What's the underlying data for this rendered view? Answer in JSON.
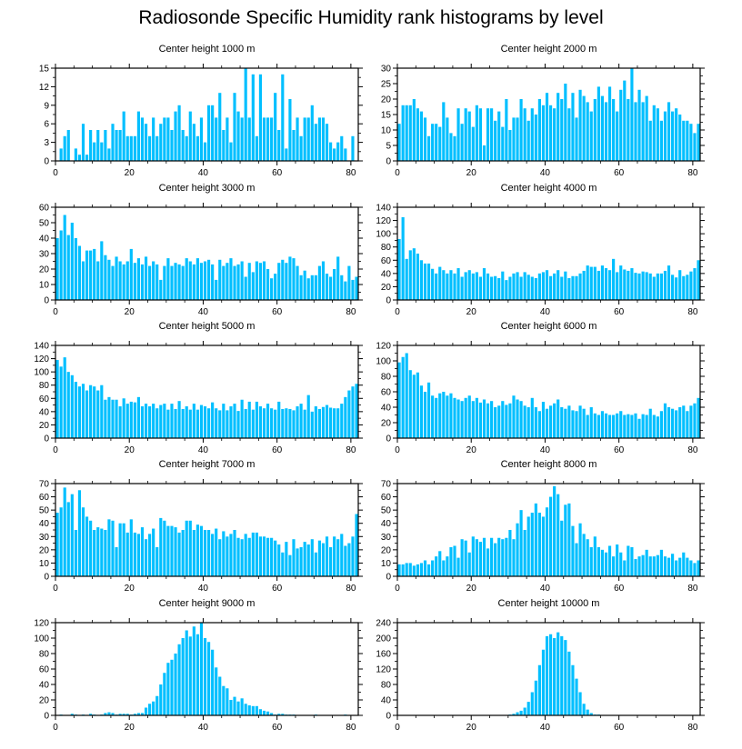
{
  "title": "Radiosonde Specific Humidity rank histograms by level",
  "bar_color": "#00bfff",
  "chart_data": [
    {
      "type": "bar",
      "title": "Center height 1000 m",
      "xlim": [
        0,
        82
      ],
      "ylim": [
        0,
        15
      ],
      "xticks": [
        0,
        20,
        40,
        60,
        80
      ],
      "yticks": [
        0,
        3,
        6,
        9,
        12,
        15
      ],
      "values": [
        0,
        2,
        4,
        5,
        0,
        2,
        1,
        6,
        1,
        5,
        3,
        5,
        3,
        5,
        2,
        6,
        5,
        5,
        8,
        4,
        4,
        4,
        8,
        7,
        6,
        4,
        7,
        4,
        6,
        7,
        7,
        5,
        8,
        9,
        5,
        4,
        8,
        6,
        4,
        7,
        3,
        9,
        9,
        7,
        11,
        5,
        7,
        3,
        11,
        8,
        7,
        15,
        7,
        14,
        4,
        14,
        7,
        7,
        7,
        11,
        5,
        14,
        2,
        10,
        5,
        7,
        4,
        7,
        7,
        9,
        6,
        7,
        7,
        6,
        3,
        2,
        3,
        4,
        2,
        0,
        4,
        0
      ]
    },
    {
      "type": "bar",
      "title": "Center height 2000 m",
      "xlim": [
        0,
        82
      ],
      "ylim": [
        0,
        30
      ],
      "xticks": [
        0,
        20,
        40,
        60,
        80
      ],
      "yticks": [
        0,
        5,
        10,
        15,
        20,
        25,
        30
      ],
      "values": [
        12,
        18,
        18,
        18,
        20,
        17,
        16,
        14,
        8,
        12,
        12,
        11,
        19,
        14,
        9,
        8,
        17,
        12,
        17,
        16,
        11,
        18,
        17,
        5,
        17,
        17,
        13,
        16,
        11,
        20,
        10,
        14,
        14,
        20,
        17,
        13,
        17,
        15,
        20,
        18,
        22,
        18,
        17,
        22,
        20,
        25,
        17,
        22,
        14,
        23,
        21,
        19,
        16,
        20,
        24,
        21,
        19,
        24,
        20,
        16,
        23,
        26,
        20,
        30,
        19,
        23,
        19,
        21,
        13,
        18,
        17,
        13,
        16,
        19,
        16,
        17,
        15,
        13,
        13,
        12,
        9,
        12
      ]
    },
    {
      "type": "bar",
      "title": "Center height 3000 m",
      "xlim": [
        0,
        82
      ],
      "ylim": [
        0,
        60
      ],
      "xticks": [
        0,
        20,
        40,
        60,
        80
      ],
      "yticks": [
        0,
        10,
        20,
        30,
        40,
        50,
        60
      ],
      "values": [
        40,
        45,
        55,
        42,
        50,
        40,
        35,
        25,
        32,
        32,
        33,
        25,
        38,
        29,
        26,
        22,
        28,
        25,
        23,
        25,
        33,
        24,
        27,
        23,
        28,
        22,
        25,
        23,
        13,
        22,
        27,
        22,
        24,
        23,
        22,
        27,
        25,
        23,
        27,
        24,
        25,
        26,
        23,
        13,
        26,
        22,
        24,
        27,
        22,
        23,
        25,
        15,
        24,
        18,
        25,
        24,
        25,
        20,
        14,
        17,
        24,
        26,
        24,
        28,
        27,
        22,
        16,
        19,
        14,
        16,
        16,
        22,
        25,
        17,
        15,
        20,
        28,
        16,
        12,
        22,
        13,
        15
      ]
    },
    {
      "type": "bar",
      "title": "Center height 4000 m",
      "xlim": [
        0,
        82
      ],
      "ylim": [
        0,
        140
      ],
      "xticks": [
        0,
        20,
        40,
        60,
        80
      ],
      "yticks": [
        0,
        20,
        40,
        60,
        80,
        100,
        120,
        140
      ],
      "values": [
        92,
        125,
        62,
        75,
        78,
        70,
        60,
        55,
        55,
        47,
        40,
        50,
        45,
        40,
        45,
        40,
        48,
        35,
        42,
        45,
        40,
        42,
        35,
        48,
        40,
        35,
        36,
        33,
        43,
        30,
        35,
        40,
        42,
        35,
        42,
        38,
        35,
        33,
        40,
        42,
        45,
        36,
        40,
        45,
        35,
        43,
        33,
        36,
        36,
        40,
        44,
        52,
        50,
        50,
        44,
        52,
        48,
        45,
        62,
        42,
        52,
        46,
        44,
        48,
        41,
        40,
        43,
        42,
        40,
        35,
        40,
        40,
        44,
        52,
        38,
        34,
        45,
        36,
        38,
        43,
        48,
        60
      ]
    },
    {
      "type": "bar",
      "title": "Center height 5000 m",
      "xlim": [
        0,
        82
      ],
      "ylim": [
        0,
        140
      ],
      "xticks": [
        0,
        20,
        40,
        60,
        80
      ],
      "yticks": [
        0,
        20,
        40,
        60,
        80,
        100,
        120,
        140
      ],
      "values": [
        118,
        108,
        122,
        100,
        95,
        85,
        78,
        82,
        72,
        80,
        78,
        72,
        80,
        58,
        62,
        58,
        58,
        48,
        60,
        52,
        55,
        54,
        62,
        48,
        52,
        48,
        52,
        45,
        50,
        52,
        43,
        52,
        44,
        56,
        44,
        48,
        43,
        52,
        43,
        50,
        48,
        45,
        54,
        45,
        42,
        52,
        42,
        48,
        52,
        41,
        58,
        44,
        55,
        43,
        55,
        48,
        45,
        52,
        45,
        43,
        55,
        44,
        45,
        44,
        42,
        48,
        52,
        43,
        65,
        40,
        48,
        44,
        47,
        50,
        46,
        45,
        45,
        52,
        62,
        72,
        78,
        82
      ]
    },
    {
      "type": "bar",
      "title": "Center height 6000 m",
      "xlim": [
        0,
        82
      ],
      "ylim": [
        0,
        120
      ],
      "xticks": [
        0,
        20,
        40,
        60,
        80
      ],
      "yticks": [
        0,
        20,
        40,
        60,
        80,
        100,
        120
      ],
      "values": [
        98,
        105,
        110,
        88,
        82,
        85,
        68,
        60,
        72,
        55,
        52,
        58,
        60,
        55,
        58,
        52,
        50,
        48,
        52,
        55,
        48,
        52,
        46,
        50,
        45,
        48,
        40,
        42,
        48,
        43,
        45,
        55,
        50,
        48,
        42,
        40,
        52,
        40,
        35,
        47,
        38,
        42,
        45,
        50,
        40,
        38,
        42,
        36,
        35,
        42,
        38,
        30,
        40,
        32,
        30,
        35,
        32,
        30,
        30,
        32,
        35,
        30,
        31,
        30,
        32,
        25,
        31,
        30,
        38,
        30,
        28,
        35,
        45,
        40,
        38,
        36,
        40,
        42,
        35,
        42,
        45,
        52
      ]
    },
    {
      "type": "bar",
      "title": "Center height 7000 m",
      "xlim": [
        0,
        82
      ],
      "ylim": [
        0,
        70
      ],
      "xticks": [
        0,
        20,
        40,
        60,
        80
      ],
      "yticks": [
        0,
        10,
        20,
        30,
        40,
        50,
        60,
        70
      ],
      "values": [
        48,
        52,
        67,
        56,
        62,
        35,
        65,
        52,
        45,
        42,
        35,
        37,
        36,
        35,
        43,
        42,
        22,
        40,
        40,
        33,
        43,
        33,
        32,
        37,
        28,
        32,
        36,
        22,
        44,
        42,
        38,
        38,
        37,
        33,
        35,
        42,
        42,
        35,
        39,
        38,
        35,
        35,
        32,
        36,
        28,
        34,
        30,
        32,
        35,
        29,
        28,
        32,
        29,
        33,
        33,
        30,
        30,
        29,
        29,
        27,
        24,
        18,
        26,
        16,
        28,
        21,
        22,
        26,
        24,
        28,
        18,
        27,
        25,
        30,
        22,
        30,
        28,
        32,
        23,
        25,
        30,
        47
      ]
    },
    {
      "type": "bar",
      "title": "Center height 8000 m",
      "xlim": [
        0,
        82
      ],
      "ylim": [
        0,
        70
      ],
      "xticks": [
        0,
        20,
        40,
        60,
        80
      ],
      "yticks": [
        0,
        10,
        20,
        30,
        40,
        50,
        60,
        70
      ],
      "values": [
        9,
        9,
        10,
        10,
        8,
        9,
        10,
        12,
        9,
        12,
        15,
        19,
        12,
        15,
        22,
        23,
        14,
        28,
        27,
        18,
        30,
        28,
        26,
        29,
        21,
        29,
        25,
        29,
        28,
        29,
        35,
        28,
        40,
        50,
        35,
        45,
        48,
        55,
        48,
        45,
        52,
        60,
        68,
        62,
        42,
        54,
        55,
        38,
        25,
        40,
        32,
        28,
        22,
        30,
        22,
        20,
        18,
        23,
        15,
        24,
        18,
        12,
        23,
        22,
        13,
        15,
        16,
        20,
        15,
        15,
        16,
        20,
        15,
        14,
        17,
        12,
        14,
        18,
        14,
        12,
        10,
        12
      ]
    },
    {
      "type": "bar",
      "title": "Center height 9000 m",
      "xlim": [
        0,
        82
      ],
      "ylim": [
        0,
        120
      ],
      "xticks": [
        0,
        20,
        40,
        60,
        80
      ],
      "yticks": [
        0,
        20,
        40,
        60,
        80,
        100,
        120
      ],
      "values": [
        0,
        1,
        0,
        0,
        2,
        1,
        0,
        1,
        0,
        2,
        1,
        0,
        1,
        3,
        4,
        3,
        1,
        2,
        2,
        2,
        1,
        2,
        3,
        3,
        10,
        15,
        18,
        25,
        40,
        55,
        68,
        72,
        80,
        92,
        100,
        110,
        102,
        115,
        105,
        120,
        100,
        95,
        85,
        62,
        50,
        38,
        35,
        20,
        24,
        18,
        22,
        15,
        13,
        12,
        12,
        8,
        6,
        5,
        3,
        1,
        2,
        2,
        1,
        1,
        1,
        0,
        0,
        0,
        0,
        0,
        1,
        0,
        0,
        0,
        0,
        0,
        0,
        0,
        1,
        0,
        0,
        0
      ]
    },
    {
      "type": "bar",
      "title": "Center height 10000 m",
      "xlim": [
        0,
        82
      ],
      "ylim": [
        0,
        240
      ],
      "xticks": [
        0,
        20,
        40,
        60,
        80
      ],
      "yticks": [
        0,
        40,
        80,
        120,
        160,
        200,
        240
      ],
      "values": [
        0,
        0,
        0,
        0,
        0,
        0,
        0,
        0,
        0,
        0,
        0,
        0,
        0,
        0,
        0,
        0,
        0,
        0,
        0,
        0,
        0,
        0,
        0,
        0,
        0,
        0,
        0,
        0,
        1,
        1,
        2,
        4,
        8,
        12,
        20,
        35,
        60,
        90,
        130,
        170,
        205,
        210,
        200,
        215,
        205,
        195,
        165,
        130,
        95,
        60,
        30,
        15,
        6,
        2,
        2,
        1,
        1,
        1,
        0,
        0,
        0,
        0,
        1,
        0,
        0,
        0,
        0,
        0,
        0,
        0,
        0,
        0,
        0,
        0,
        0,
        0,
        0,
        0,
        0,
        0,
        0,
        0
      ]
    }
  ]
}
